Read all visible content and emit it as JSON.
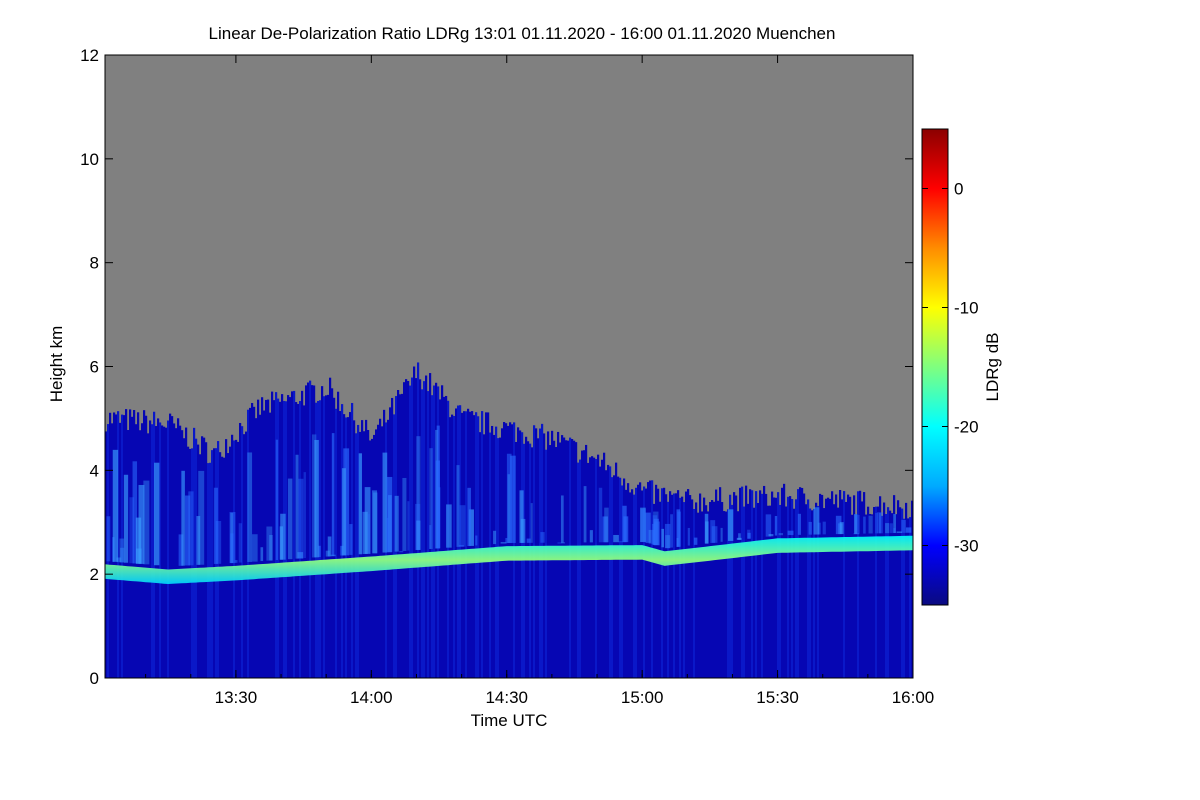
{
  "chart_data": {
    "type": "heatmap",
    "title": "Linear De-Polarization Ratio LDRg   13:01 01.11.2020 - 16:00 01.11.2020 Muenchen",
    "xlabel": "Time UTC",
    "ylabel": "Height km",
    "x_ticks": [
      "13:30",
      "14:00",
      "14:30",
      "15:00",
      "15:30",
      "16:00"
    ],
    "x_range": [
      "13:01",
      "16:00"
    ],
    "y_ticks": [
      0,
      2,
      4,
      6,
      8,
      10,
      12
    ],
    "ylim": [
      0,
      12
    ],
    "colorbar": {
      "label": "LDRg dB",
      "ticks": [
        0,
        -10,
        -20,
        -30
      ],
      "range": [
        -35,
        5
      ],
      "colors": [
        "#0a0a80",
        "#0000ff",
        "#00aaff",
        "#00ffff",
        "#7fff7f",
        "#ffff00",
        "#ff8c00",
        "#ff0000",
        "#8b0000"
      ]
    },
    "no_signal_color": "#808080",
    "features": {
      "background_ldr_db": -33,
      "layer_ldr_db": -20,
      "layer_height_km": [
        {
          "time": "13:01",
          "height": 2.05
        },
        {
          "time": "13:15",
          "height": 1.95
        },
        {
          "time": "13:30",
          "height": 2.02
        },
        {
          "time": "14:00",
          "height": 2.2
        },
        {
          "time": "14:30",
          "height": 2.4
        },
        {
          "time": "15:00",
          "height": 2.42
        },
        {
          "time": "15:05",
          "height": 2.3
        },
        {
          "time": "15:30",
          "height": 2.55
        },
        {
          "time": "16:00",
          "height": 2.6
        }
      ],
      "cloud_top_km": [
        {
          "time": "13:01",
          "height": 5.0
        },
        {
          "time": "13:15",
          "height": 4.9
        },
        {
          "time": "13:25",
          "height": 4.3
        },
        {
          "time": "13:35",
          "height": 5.2
        },
        {
          "time": "13:50",
          "height": 5.6
        },
        {
          "time": "14:00",
          "height": 4.6
        },
        {
          "time": "14:10",
          "height": 5.9
        },
        {
          "time": "14:20",
          "height": 5.0
        },
        {
          "time": "14:30",
          "height": 4.8
        },
        {
          "time": "14:40",
          "height": 4.6
        },
        {
          "time": "14:50",
          "height": 4.2
        },
        {
          "time": "15:00",
          "height": 3.6
        },
        {
          "time": "15:10",
          "height": 3.4
        },
        {
          "time": "15:30",
          "height": 3.5
        },
        {
          "time": "15:45",
          "height": 3.4
        },
        {
          "time": "16:00",
          "height": 3.3
        }
      ]
    }
  }
}
